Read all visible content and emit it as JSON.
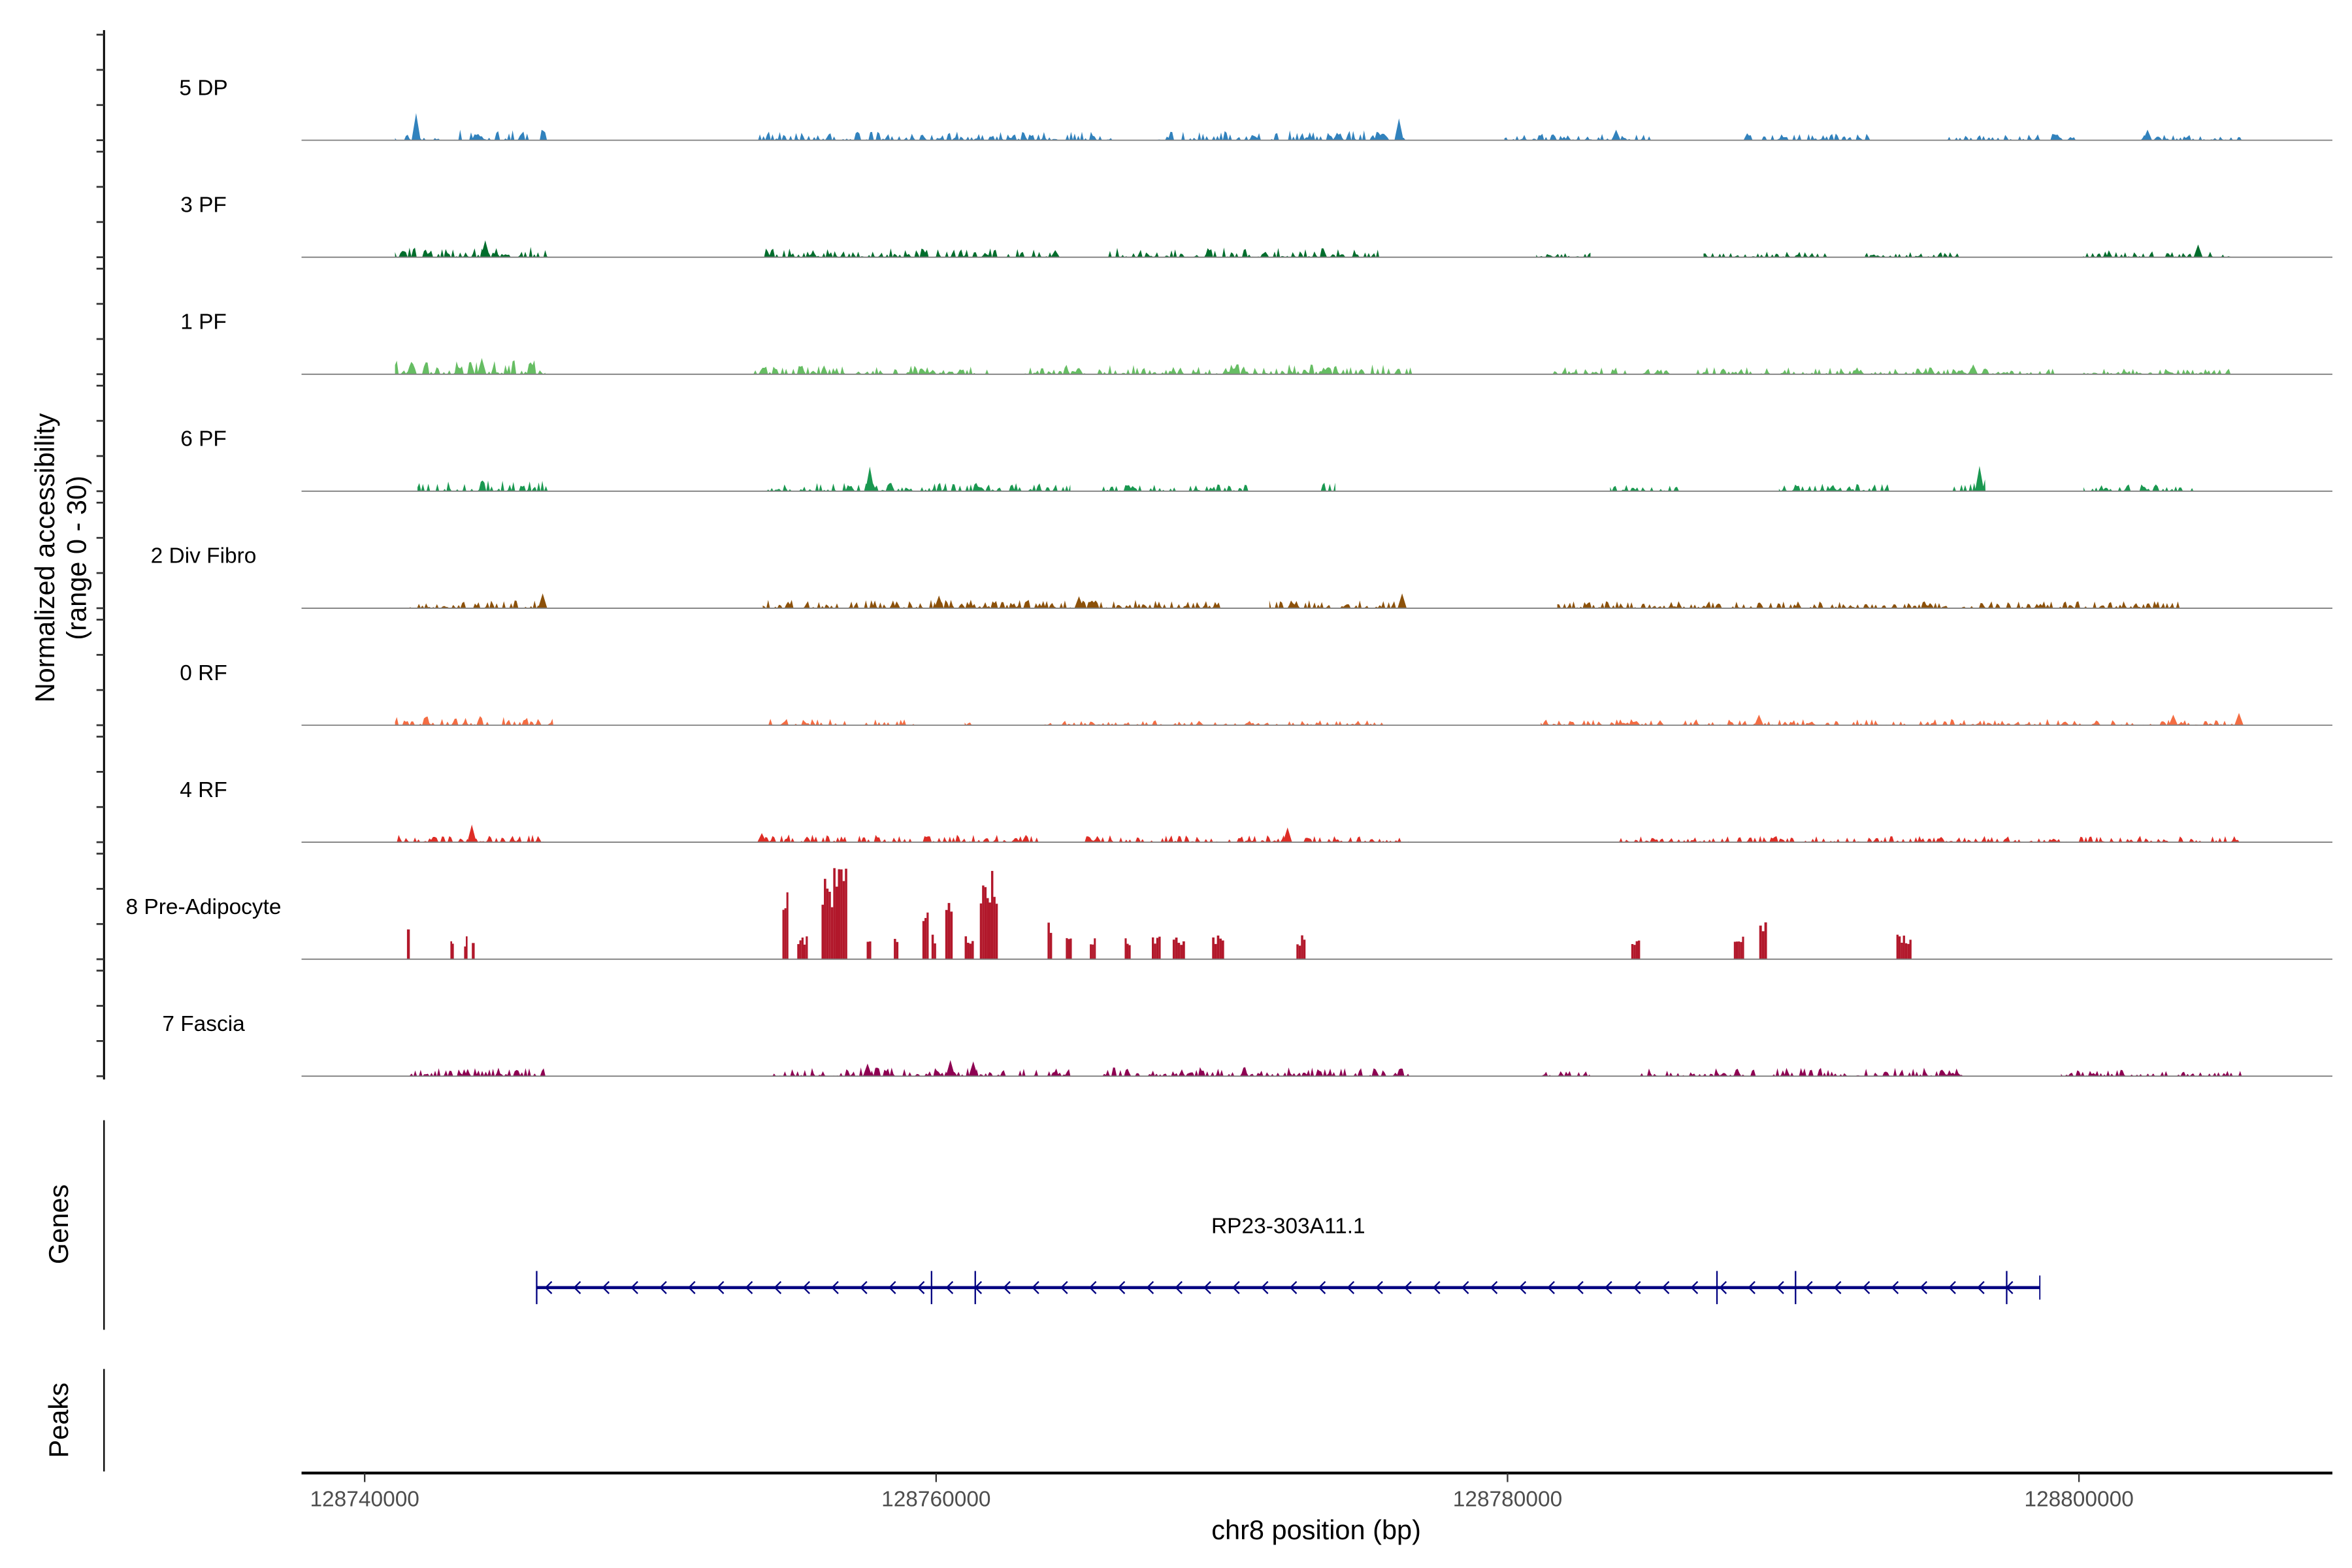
{
  "chart_data": {
    "type": "area",
    "title": "",
    "xlabel": "chr8 position (bp)",
    "ylabel": "Normalized accessibility",
    "ylabel_sub": "(range 0 - 30)",
    "xlim": [
      128737790,
      128808870
    ],
    "ylim_per_track": [
      0,
      30
    ],
    "x_ticks": [
      128740000,
      128760000,
      128780000,
      128800000
    ],
    "x_tick_labels": [
      "128740000",
      "128760000",
      "128780000",
      "128800000"
    ],
    "grid": false,
    "tracks": [
      {
        "name": "5 DP",
        "color": "#3182bd",
        "regions": [
          [
            128741060,
            128746440,
            3
          ],
          [
            128753770,
            128766170,
            2.5
          ],
          [
            128767760,
            128776570,
            2.8
          ],
          [
            128779890,
            128785170,
            1.8
          ],
          [
            128788070,
            128792930,
            2
          ],
          [
            128795140,
            128800050,
            1.8
          ],
          [
            128802160,
            128805700,
            1.5
          ]
        ],
        "peaks": [
          [
            128741800,
            7.7
          ],
          [
            128776200,
            6.2
          ],
          [
            128783800,
            3
          ],
          [
            128802400,
            3
          ]
        ]
      },
      {
        "name": "3 PF",
        "color": "#006d2c",
        "regions": [
          [
            128741060,
            128746440,
            3
          ],
          [
            128753980,
            128764170,
            2.6
          ],
          [
            128766020,
            128775510,
            2.8
          ],
          [
            128781000,
            128782900,
            1.5
          ],
          [
            128786860,
            128791190,
            1.6
          ],
          [
            128792510,
            128795830,
            1.5
          ],
          [
            128799840,
            128805330,
            2
          ]
        ],
        "peaks": [
          [
            128744220,
            4.8
          ],
          [
            128764170,
            1.5
          ],
          [
            128764170,
            2
          ],
          [
            128804170,
            3.6
          ]
        ]
      },
      {
        "name": "1 PF",
        "color": "#66bd63",
        "regions": [
          [
            128741060,
            128746330,
            4
          ],
          [
            128753610,
            128761900,
            2.5
          ],
          [
            128763110,
            128776680,
            2.8
          ],
          [
            128781580,
            128785800,
            2
          ],
          [
            128786600,
            128799260,
            2
          ],
          [
            128800050,
            128805330,
            1.6
          ]
        ],
        "peaks": [
          [
            128744100,
            4.6
          ],
          [
            128796300,
            2.8
          ]
        ]
      },
      {
        "name": "6 PF",
        "color": "#1a9850",
        "regions": [
          [
            128741850,
            128746440,
            3.2
          ],
          [
            128753930,
            128764700,
            2.4
          ],
          [
            128765800,
            128771030,
            2
          ],
          [
            128773460,
            128773980,
            2.5
          ],
          [
            128783590,
            128786070,
            2
          ],
          [
            128789500,
            128793460,
            2.2
          ],
          [
            128795570,
            128796730,
            3.5
          ],
          [
            128800160,
            128804010,
            2
          ]
        ],
        "peaks": [
          [
            128757680,
            7
          ],
          [
            128796520,
            7.2
          ]
        ]
      },
      {
        "name": "2 Div Fibro",
        "color": "#8c510a",
        "regions": [
          [
            128741580,
            128746330,
            2.2
          ],
          [
            128753930,
            128769970,
            2.4
          ],
          [
            128771660,
            128776570,
            2.4
          ],
          [
            128781740,
            128803800,
            2
          ]
        ],
        "peaks": [
          [
            128746230,
            4.2
          ],
          [
            128776310,
            4.2
          ],
          [
            128760100,
            3.6
          ],
          [
            128765000,
            3.4
          ]
        ]
      },
      {
        "name": "0 RF",
        "color": "#f46d43",
        "regions": [
          [
            128741060,
            128746600,
            2.6
          ],
          [
            128754140,
            128759260,
            1.8
          ],
          [
            128761000,
            128761270,
            1.5
          ],
          [
            128763750,
            128775990,
            1.4
          ],
          [
            128781160,
            128805700,
            1.8
          ]
        ],
        "peaks": [
          [
            128788800,
            3
          ],
          [
            128805600,
            3.5
          ],
          [
            128803300,
            3
          ]
        ]
      },
      {
        "name": "4 RF",
        "color": "#de2d26",
        "regions": [
          [
            128741060,
            128746440,
            2.2
          ],
          [
            128753770,
            128763640,
            2.2
          ],
          [
            128765070,
            128776570,
            2
          ],
          [
            128783590,
            128805700,
            1.8
          ]
        ],
        "peaks": [
          [
            128743750,
            5
          ],
          [
            128772300,
            4.2
          ],
          [
            128753900,
            2.6
          ]
        ]
      },
      {
        "name": "8 Pre-Adipocyte",
        "color": "#b2182b",
        "bars": [
          [
            128741480,
            128741580,
            13
          ],
          [
            128743000,
            128743120,
            6.5
          ],
          [
            128743480,
            128743600,
            6.5
          ],
          [
            128743750,
            128743850,
            6.5
          ],
          [
            128754620,
            128754830,
            20.5
          ],
          [
            128755140,
            128755510,
            7
          ],
          [
            128755990,
            128756890,
            26
          ],
          [
            128757570,
            128757730,
            7
          ],
          [
            128758520,
            128758680,
            7
          ],
          [
            128759520,
            128759740,
            14
          ],
          [
            128759840,
            128760000,
            8
          ],
          [
            128760320,
            128760580,
            18
          ],
          [
            128761000,
            128761320,
            7
          ],
          [
            128761530,
            128762160,
            27
          ],
          [
            128763900,
            128764060,
            12
          ],
          [
            128764540,
            128764750,
            7
          ],
          [
            128765380,
            128765590,
            7
          ],
          [
            128766600,
            128766810,
            7
          ],
          [
            128767550,
            128767860,
            7
          ],
          [
            128768280,
            128768710,
            7
          ],
          [
            128769660,
            128770080,
            7
          ],
          [
            128772610,
            128772930,
            7
          ],
          [
            128784330,
            128784640,
            7
          ],
          [
            128787920,
            128788280,
            7
          ],
          [
            128788810,
            128789080,
            13
          ],
          [
            128793610,
            128794140,
            7
          ]
        ]
      },
      {
        "name": "7 Fascia",
        "color": "#8e0152",
        "regions": [
          [
            128741580,
            128746330,
            2.6
          ],
          [
            128754200,
            128764700,
            2.6
          ],
          [
            128765750,
            128776570,
            2.6
          ],
          [
            128781160,
            128782900,
            1.5
          ],
          [
            128784380,
            128795940,
            2.4
          ],
          [
            128799370,
            128805700,
            1.8
          ]
        ],
        "peaks": [
          [
            128760500,
            4.6
          ],
          [
            128761300,
            4.2
          ],
          [
            128757600,
            3.6
          ]
        ]
      }
    ],
    "genes": {
      "panel_label": "Genes",
      "items": [
        {
          "name": "RP23-303A11.1",
          "start": 128746020,
          "end": 128798630,
          "strand": "-",
          "exon_marks": [
            128746020,
            128759840,
            128761370,
            128787330,
            128790080,
            128797470
          ],
          "color": "#000080"
        }
      ]
    },
    "peaks_panel": {
      "panel_label": "Peaks",
      "items": []
    }
  }
}
